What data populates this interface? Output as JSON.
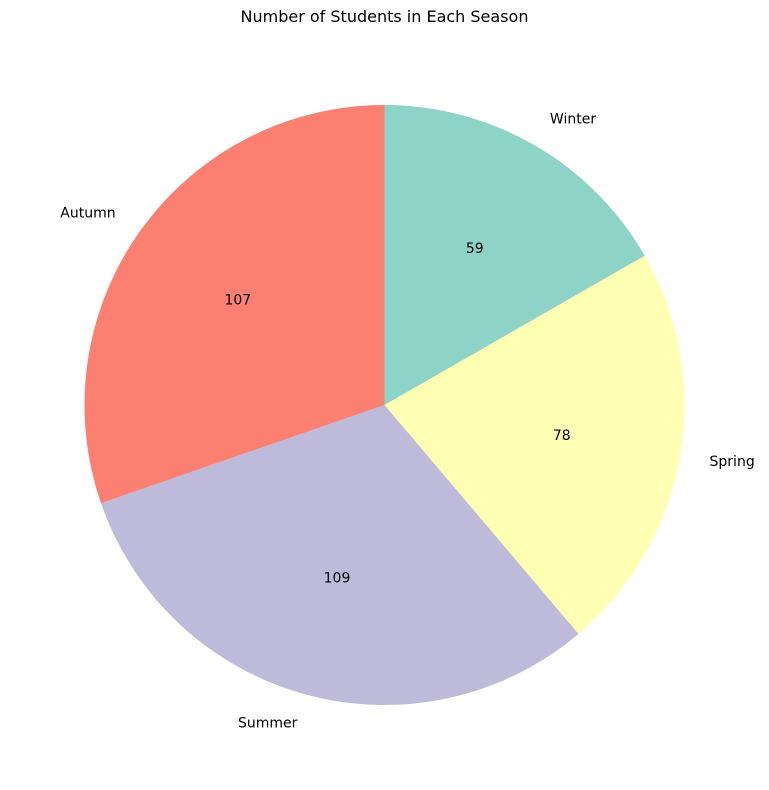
{
  "chart_data": {
    "type": "pie",
    "title": "Number of Students in Each Season",
    "slices": [
      {
        "label": "Winter",
        "value": 59,
        "color": "#8DD3C7"
      },
      {
        "label": "Spring",
        "value": 78,
        "color": "#FFFFB3"
      },
      {
        "label": "Summer",
        "value": 109,
        "color": "#BEBADA"
      },
      {
        "label": "Autumn",
        "value": 107,
        "color": "#FB8072"
      }
    ],
    "start_angle": 90,
    "direction": "clockwise",
    "value_labels": "values"
  }
}
